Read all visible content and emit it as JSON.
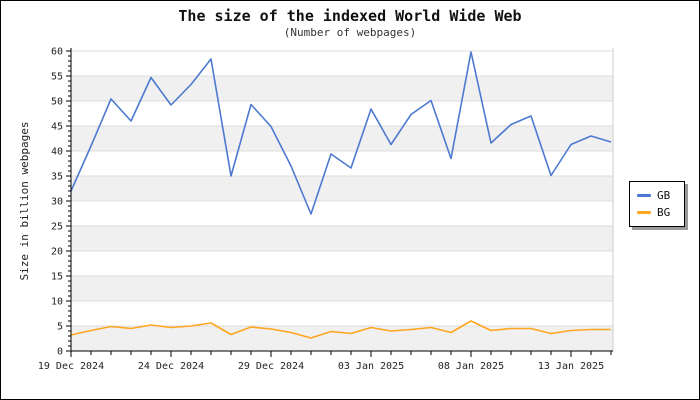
{
  "title": "The size of the indexed World Wide Web",
  "subtitle": "(Number of webpages)",
  "legend": {
    "items": [
      {
        "label": "GB",
        "color": "#4d79d1"
      },
      {
        "label": "BG",
        "color": "#ffa51e"
      }
    ]
  },
  "chart_data": {
    "type": "line",
    "title": "The size of the indexed World Wide Web",
    "subtitle": "(Number of webpages)",
    "xlabel": "",
    "ylabel": "Size in billion webpages",
    "ylim": [
      0,
      60
    ],
    "y_tick_step": 5,
    "y_minor_step": 1,
    "grid": "horizontal-bands",
    "band_color": "#f0f0f0",
    "gridline_color": "#dcdcdc",
    "legend_position": "right",
    "x_major_tick_labels": [
      "19 Dec 2024",
      "24 Dec 2024",
      "29 Dec 2024",
      "03 Jan 2025",
      "08 Jan 2025",
      "13 Jan 2025"
    ],
    "x_major_tick_every_days": 5,
    "x": [
      "19 Dec 2024",
      "20 Dec 2024",
      "21 Dec 2024",
      "22 Dec 2024",
      "23 Dec 2024",
      "24 Dec 2024",
      "25 Dec 2024",
      "26 Dec 2024",
      "27 Dec 2024",
      "28 Dec 2024",
      "29 Dec 2024",
      "30 Dec 2024",
      "31 Dec 2024",
      "01 Jan 2025",
      "02 Jan 2025",
      "03 Jan 2025",
      "04 Jan 2025",
      "05 Jan 2025",
      "06 Jan 2025",
      "07 Jan 2025",
      "08 Jan 2025",
      "09 Jan 2025",
      "10 Jan 2025",
      "11 Jan 2025",
      "12 Jan 2025",
      "13 Jan 2025",
      "14 Jan 2025",
      "15 Jan 2025"
    ],
    "series": [
      {
        "name": "GB",
        "color": "#4d79d1",
        "values": [
          32.0,
          41.0,
          50.4,
          46.0,
          54.7,
          49.2,
          53.3,
          58.4,
          35.0,
          49.3,
          44.9,
          37.0,
          27.4,
          39.4,
          36.6,
          48.4,
          41.3,
          47.3,
          50.1,
          38.5,
          59.8,
          41.6,
          45.3,
          47.0,
          35.1,
          41.3,
          43.0,
          41.8
        ]
      },
      {
        "name": "BG",
        "color": "#ffa51e",
        "values": [
          3.2,
          4.1,
          4.9,
          4.5,
          5.2,
          4.7,
          5.0,
          5.6,
          3.3,
          4.8,
          4.4,
          3.7,
          2.6,
          3.9,
          3.5,
          4.7,
          4.0,
          4.3,
          4.7,
          3.7,
          6.0,
          4.1,
          4.5,
          4.5,
          3.5,
          4.1,
          4.3,
          4.3
        ]
      }
    ]
  }
}
